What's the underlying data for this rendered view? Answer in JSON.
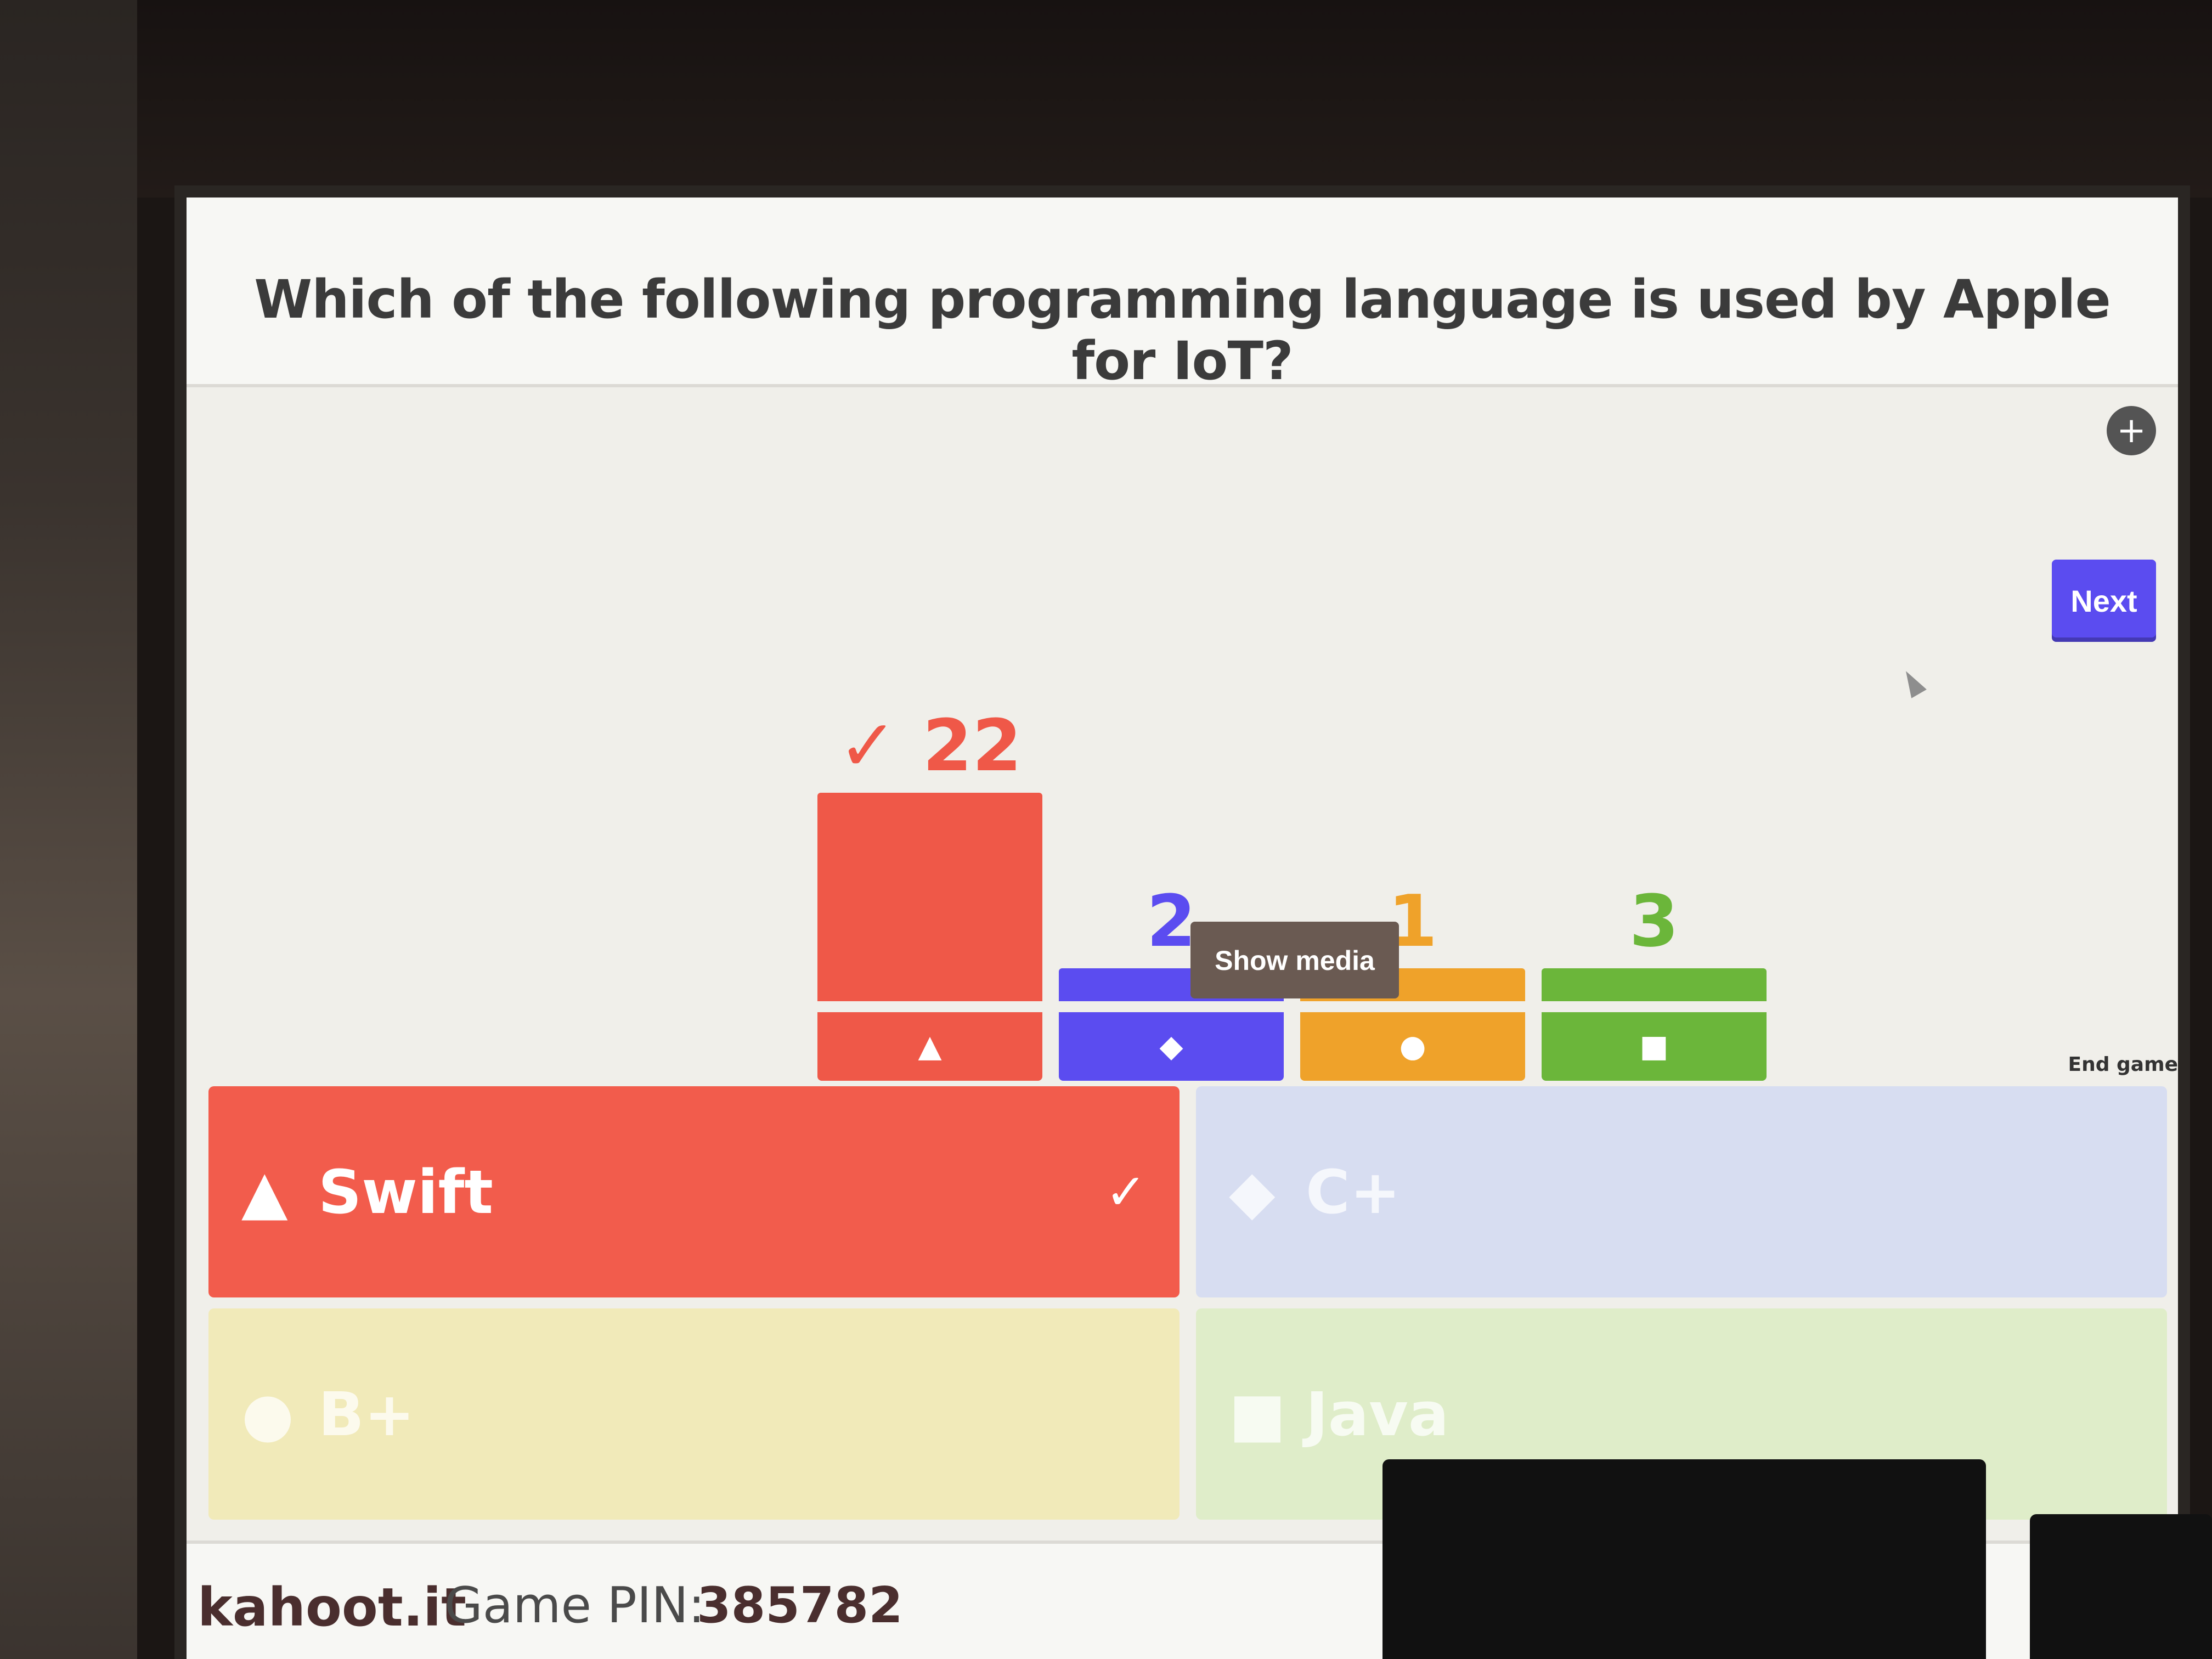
{
  "question": "Which of the following programming language is used by Apple for IoT?",
  "buttons": {
    "next": "Next",
    "show_media": "Show media",
    "end_game": "End game"
  },
  "corner_icon": "add-icon",
  "chart_data": {
    "type": "bar",
    "categories": [
      "▲",
      "◆",
      "●",
      "■"
    ],
    "values": [
      22,
      2,
      1,
      3
    ],
    "correct_label": "✓",
    "colors": [
      "#ef5848",
      "#5b4cf0",
      "#efa22a",
      "#6bb63a"
    ]
  },
  "answers": [
    {
      "shape": "▲",
      "label": "Swift",
      "check": "✓",
      "color": "#f25c4c",
      "dimmed": false
    },
    {
      "shape": "◆",
      "label": "C+",
      "check": "",
      "color": "#d7ddf1",
      "dimmed": true
    },
    {
      "shape": "●",
      "label": "B+",
      "check": "",
      "color": "#f1eab9",
      "dimmed": true
    },
    {
      "shape": "■",
      "label": "Java",
      "check": "",
      "color": "#dfedc9",
      "dimmed": true
    }
  ],
  "footer": {
    "brand": "kahoot.it",
    "pin_label": "Game PIN:",
    "pin_value": "385782"
  }
}
